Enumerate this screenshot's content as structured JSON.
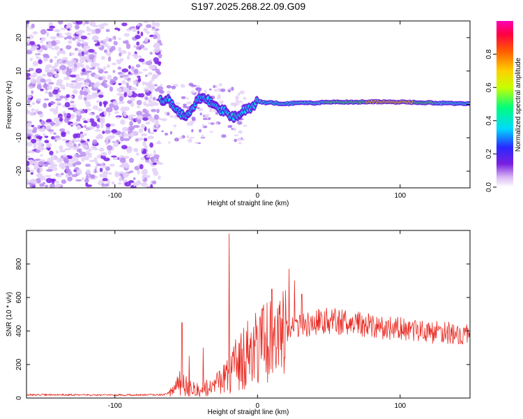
{
  "title": "S197.2025.268.22.09.G09",
  "chart_data": [
    {
      "type": "heatmap",
      "name": "spectrogram",
      "xlabel": "Height of straight line (km)",
      "ylabel": "Frequency (Hz)",
      "xlim": [
        -162,
        149
      ],
      "ylim": [
        -25,
        25
      ],
      "xticks": [
        "-100",
        "0",
        "100"
      ],
      "xtick_values": [
        -100,
        0,
        100
      ],
      "yticks": [
        "20",
        "10",
        "0",
        "-10",
        "-20"
      ],
      "ytick_values": [
        20,
        10,
        0,
        -10,
        -20
      ],
      "noise_region": {
        "x": [
          -162,
          -68
        ],
        "frequency_range": [
          -25,
          25
        ]
      },
      "signal_trace": {
        "x": [
          -68,
          -62,
          -58,
          -54,
          -50,
          -46,
          -42,
          -38,
          -34,
          -30,
          -26,
          -22,
          -18,
          -14,
          -10,
          -6,
          -2,
          0,
          5,
          10,
          20,
          30,
          40,
          50,
          60,
          70,
          80,
          90,
          100,
          110,
          120,
          130,
          140,
          149
        ],
        "frequency": [
          1.0,
          1.5,
          -0.8,
          -2.5,
          -3.0,
          -1.0,
          1.5,
          2.5,
          1.0,
          0.5,
          -1.5,
          -2.0,
          -4.0,
          -3.0,
          -2.0,
          -1.0,
          0.0,
          1.0,
          0.5,
          0.5,
          0.2,
          0.5,
          0.4,
          0.7,
          0.7,
          0.7,
          0.8,
          0.8,
          0.7,
          0.6,
          0.5,
          0.4,
          0.3,
          0.2
        ],
        "amplitude": [
          0.35,
          0.25,
          0.2,
          0.3,
          0.25,
          0.3,
          0.25,
          0.3,
          0.25,
          0.3,
          0.25,
          0.3,
          0.3,
          0.3,
          0.35,
          0.35,
          0.4,
          0.4,
          0.45,
          0.45,
          0.45,
          0.5,
          0.55,
          0.6,
          0.65,
          0.7,
          0.85,
          0.9,
          0.85,
          0.8,
          0.65,
          0.5,
          0.45,
          0.45
        ]
      }
    },
    {
      "type": "line",
      "name": "snr",
      "xlabel": "Height of straight line (km)",
      "ylabel": "SNR (10 * v/v)",
      "xlim": [
        -162,
        149
      ],
      "ylim": [
        0,
        1000
      ],
      "xticks": [
        "-100",
        "0",
        "100"
      ],
      "xtick_values": [
        -100,
        0,
        100
      ],
      "yticks": [
        "0",
        "200",
        "400",
        "600",
        "800"
      ],
      "ytick_values": [
        0,
        200,
        400,
        600,
        800
      ],
      "envelope": {
        "x": [
          -162,
          -100,
          -65,
          -60,
          -55,
          -50,
          -45,
          -40,
          -35,
          -30,
          -25,
          -20,
          -15,
          -10,
          -5,
          0,
          10,
          20,
          30,
          40,
          50,
          60,
          70,
          80,
          90,
          100,
          110,
          120,
          130,
          140,
          149
        ],
        "y": [
          20,
          18,
          20,
          40,
          100,
          80,
          60,
          50,
          70,
          80,
          120,
          180,
          220,
          260,
          300,
          330,
          360,
          400,
          430,
          450,
          460,
          450,
          440,
          430,
          420,
          410,
          400,
          395,
          390,
          385,
          380
        ]
      },
      "spikes": [
        {
          "x": -53,
          "y": 450
        },
        {
          "x": -48,
          "y": 250
        },
        {
          "x": -38,
          "y": 300
        },
        {
          "x": -20,
          "y": 980
        },
        {
          "x": -7,
          "y": 460
        },
        {
          "x": 10,
          "y": 650
        },
        {
          "x": 22,
          "y": 770
        },
        {
          "x": 26,
          "y": 700
        },
        {
          "x": 31,
          "y": 620
        }
      ]
    },
    {
      "type": "colorbar",
      "name": "amplitude-scale",
      "label": "Normalized spectral amplitude",
      "range": [
        0,
        1
      ],
      "ticks": [
        "0.0",
        "0.2",
        "0.4",
        "0.6",
        "0.8"
      ],
      "tick_values": [
        0,
        0.2,
        0.4,
        0.6,
        0.8
      ]
    }
  ]
}
